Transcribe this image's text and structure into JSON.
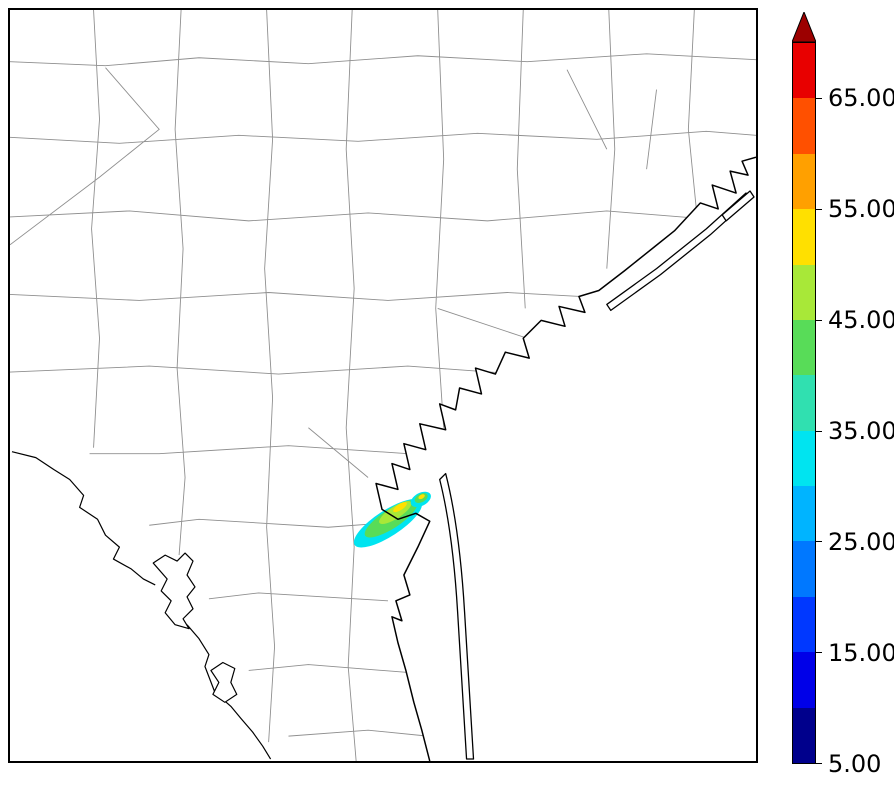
{
  "figure": {
    "background": "#ffffff",
    "frame_color": "#000000"
  },
  "map": {
    "county_line_color": "#8f8f8f",
    "coastline_color": "#000000",
    "water_fill": "#ffffff",
    "land_fill": "#ffffff"
  },
  "colorbar": {
    "orientation": "vertical",
    "min": 5,
    "max": 70,
    "outline_color": "#000000",
    "arrow_color": "#9c0000",
    "ticks": [
      {
        "value": 5,
        "label": "5.00"
      },
      {
        "value": 15,
        "label": "15.00"
      },
      {
        "value": 25,
        "label": "25.00"
      },
      {
        "value": 35,
        "label": "35.00"
      },
      {
        "value": 45,
        "label": "45.00"
      },
      {
        "value": 55,
        "label": "55.00"
      },
      {
        "value": 65,
        "label": "65.00"
      }
    ],
    "segments": [
      {
        "from": 5,
        "to": 10,
        "color": "#00008c"
      },
      {
        "from": 10,
        "to": 15,
        "color": "#0000e8"
      },
      {
        "from": 15,
        "to": 20,
        "color": "#0038ff"
      },
      {
        "from": 20,
        "to": 25,
        "color": "#0078ff"
      },
      {
        "from": 25,
        "to": 30,
        "color": "#00b4ff"
      },
      {
        "from": 30,
        "to": 35,
        "color": "#00e4f0"
      },
      {
        "from": 35,
        "to": 40,
        "color": "#30e0b0"
      },
      {
        "from": 40,
        "to": 45,
        "color": "#58dc58"
      },
      {
        "from": 45,
        "to": 50,
        "color": "#a8e838"
      },
      {
        "from": 50,
        "to": 55,
        "color": "#ffe000"
      },
      {
        "from": 55,
        "to": 60,
        "color": "#ffa000"
      },
      {
        "from": 60,
        "to": 65,
        "color": "#ff5000"
      },
      {
        "from": 65,
        "to": 70,
        "color": "#e80000"
      }
    ]
  },
  "chart_data": {
    "type": "heatmap",
    "title": "",
    "xlabel": "",
    "ylabel": "",
    "legend_position": "right-colorbar",
    "colorbar": {
      "min": 5,
      "max": 70,
      "level_step": 5,
      "tick_values": [
        5,
        15,
        25,
        35,
        45,
        55,
        65
      ],
      "tick_labels": [
        "5.00",
        "15.00",
        "25.00",
        "35.00",
        "45.00",
        "55.00",
        "65.00"
      ],
      "overflow_arrow": "top"
    },
    "plume": {
      "approx_center_fraction": {
        "x": 0.51,
        "y": 0.68
      },
      "orientation": "southwest-to-northeast",
      "approx_value_range": [
        30,
        55
      ]
    }
  }
}
